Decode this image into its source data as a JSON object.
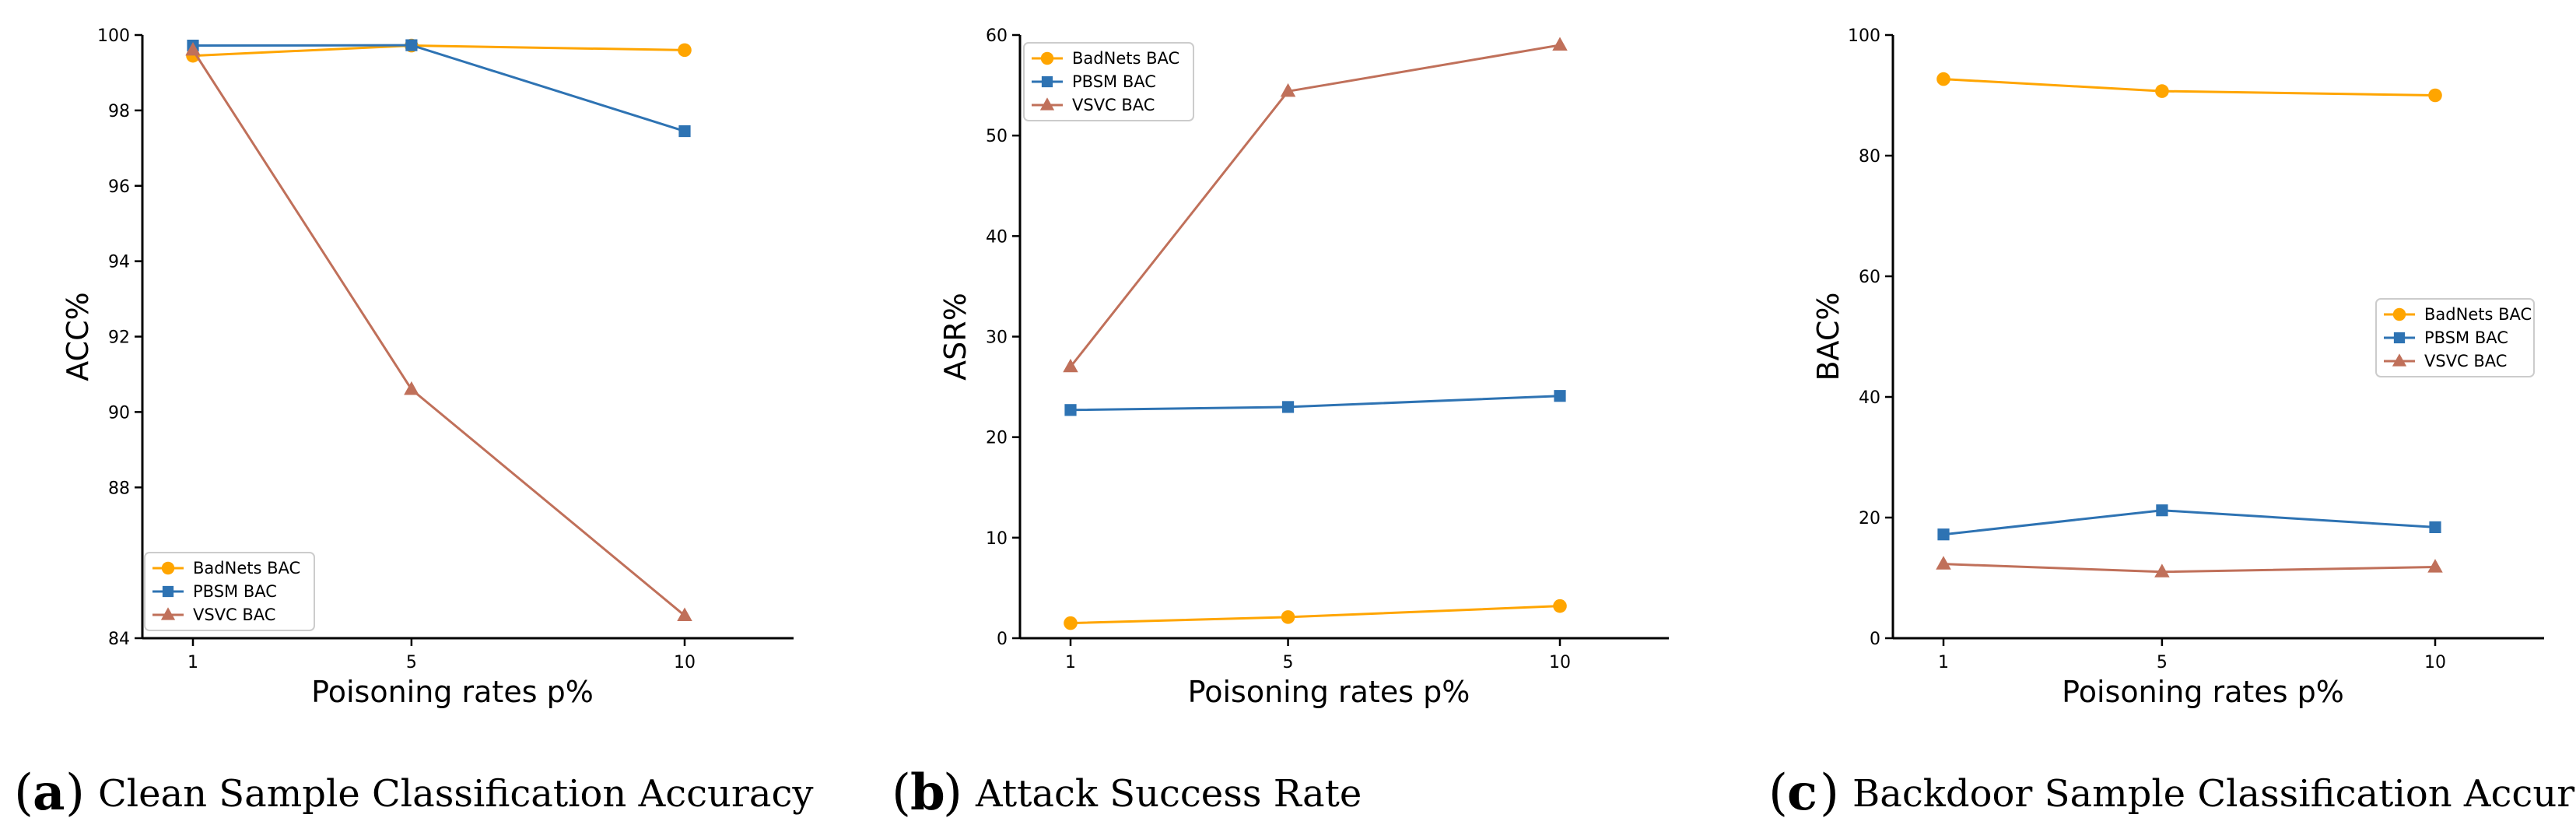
{
  "colors": {
    "BadNets BAC": "#FFA500",
    "PBSM BAC": "#2E73B3",
    "VSVC BAC": "#C0705A"
  },
  "markers": {
    "BadNets BAC": "circle",
    "PBSM BAC": "square",
    "VSVC BAC": "triangle"
  },
  "chart_data": [
    {
      "type": "line",
      "x": [
        1,
        5,
        10
      ],
      "x_tick_labels": [
        "1",
        "5",
        "10"
      ],
      "xlabel": "Poisoning rates p%",
      "ylabel": "ACC%",
      "ylim": [
        84,
        100
      ],
      "yticks": [
        84,
        88,
        90,
        92,
        94,
        96,
        98,
        100
      ],
      "legend_loc": "lower-left",
      "series": [
        {
          "name": "BadNets BAC",
          "values": [
            99.45,
            99.72,
            99.6
          ]
        },
        {
          "name": "PBSM BAC",
          "values": [
            99.72,
            99.73,
            97.45
          ]
        },
        {
          "name": "VSVC BAC",
          "values": [
            99.6,
            90.6,
            84.6
          ]
        }
      ],
      "caption": {
        "letter": "a",
        "text": "Clean Sample Classification Accuracy"
      }
    },
    {
      "type": "line",
      "x": [
        1,
        5,
        10
      ],
      "x_tick_labels": [
        "1",
        "5",
        "10"
      ],
      "xlabel": "Poisoning rates p%",
      "ylabel": "ASR%",
      "ylim": [
        0,
        60
      ],
      "yticks": [
        0,
        10,
        20,
        30,
        40,
        50,
        60
      ],
      "legend_loc": "upper-left",
      "series": [
        {
          "name": "BadNets BAC",
          "values": [
            1.5,
            2.1,
            3.2
          ]
        },
        {
          "name": "PBSM BAC",
          "values": [
            22.7,
            23.0,
            24.1
          ]
        },
        {
          "name": "VSVC BAC",
          "values": [
            27.0,
            54.4,
            59.0
          ]
        }
      ],
      "caption": {
        "letter": "b",
        "text": "Attack Success Rate"
      }
    },
    {
      "type": "line",
      "x": [
        1,
        5,
        10
      ],
      "x_tick_labels": [
        "1",
        "5",
        "10"
      ],
      "xlabel": "Poisoning rates p%",
      "ylabel": "BAC%",
      "ylim": [
        0,
        100
      ],
      "yticks": [
        0,
        20,
        40,
        60,
        80,
        100
      ],
      "legend_loc": "center-right",
      "series": [
        {
          "name": "BadNets BAC",
          "values": [
            92.7,
            90.7,
            90.0
          ]
        },
        {
          "name": "PBSM BAC",
          "values": [
            17.2,
            21.2,
            18.4
          ]
        },
        {
          "name": "VSVC BAC",
          "values": [
            12.3,
            11.0,
            11.8
          ]
        }
      ],
      "caption": {
        "letter": "c",
        "text": "Backdoor Sample Classification Accuracy"
      }
    }
  ]
}
